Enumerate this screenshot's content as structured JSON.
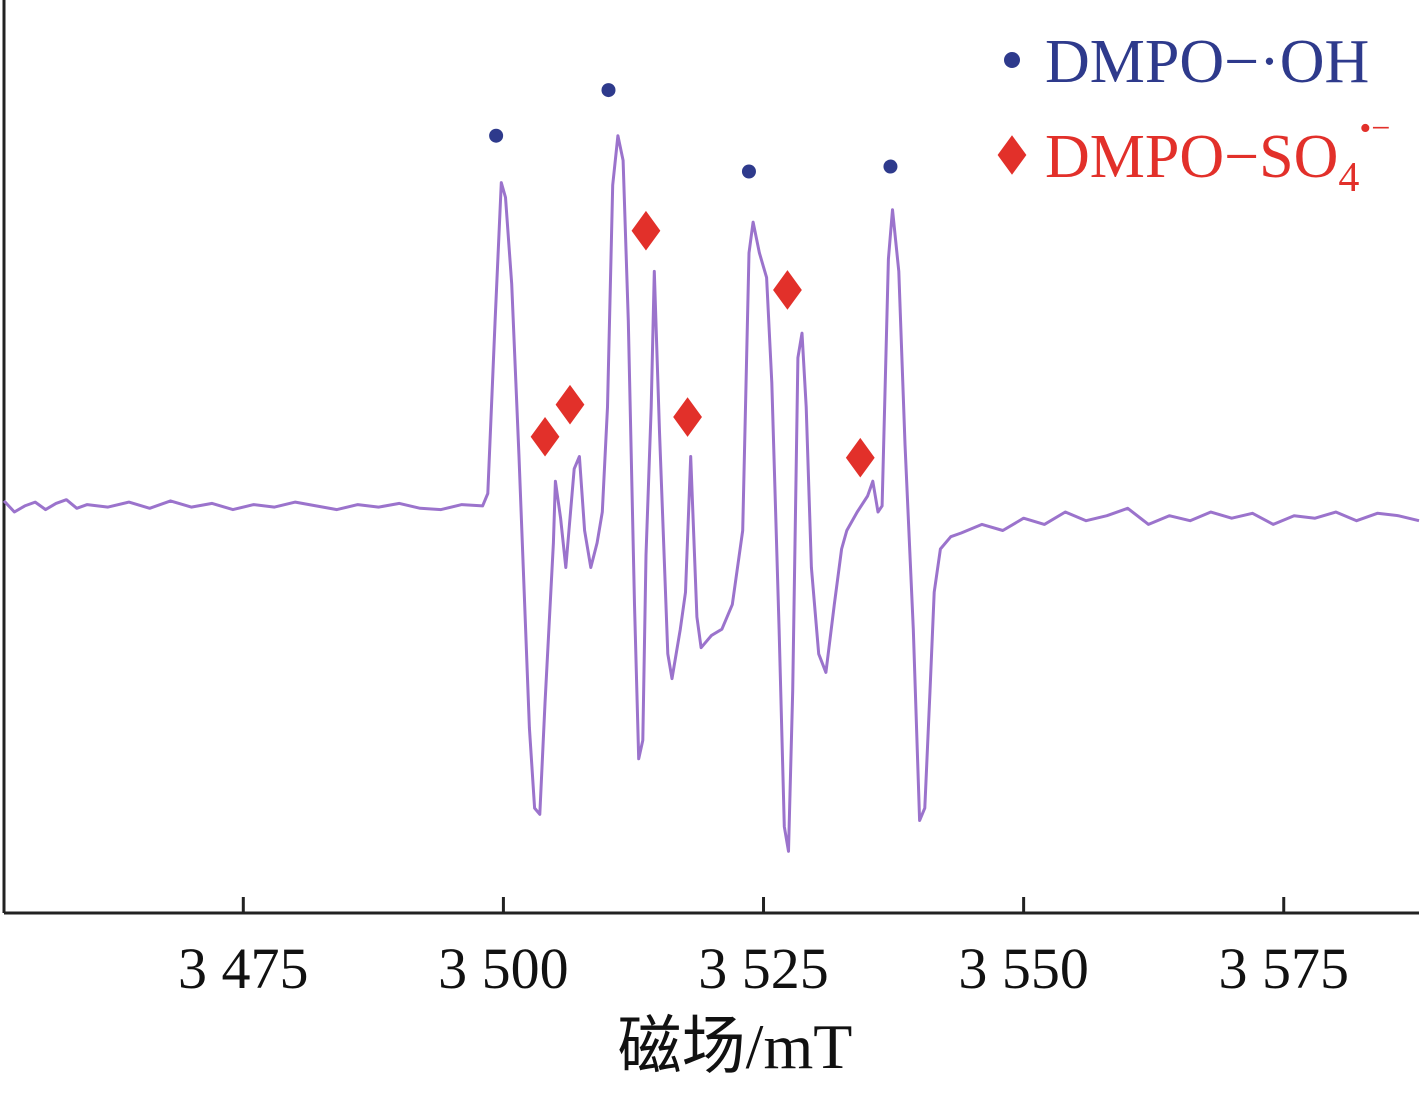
{
  "chart_data": {
    "type": "line",
    "title": "",
    "xlabel": "磁场/mT",
    "ylabel": "",
    "xlim": [
      3452,
      3588
    ],
    "ylim": [
      -330,
      410
    ],
    "x_ticks": [
      3475,
      3500,
      3525,
      3550,
      3575
    ],
    "x_tick_labels": [
      "3 475",
      "3 500",
      "3 525",
      "3 550",
      "3 575"
    ],
    "grid": false,
    "legend_position": "top-right",
    "legend": [
      {
        "label_main": "DMPO−·OH",
        "label_sub": "",
        "label_sup": "",
        "marker": "circle",
        "color": "#2e3a8c"
      },
      {
        "label_main": "DMPO−SO",
        "label_sub": "4",
        "label_sup": "•−",
        "marker": "diamond",
        "color": "#e2302a"
      }
    ],
    "series": [
      {
        "color": "#9b73cc",
        "points": [
          [
            3452,
            4
          ],
          [
            3453,
            -5
          ],
          [
            3454,
            0
          ],
          [
            3455,
            3
          ],
          [
            3456,
            -3
          ],
          [
            3457,
            2
          ],
          [
            3458,
            5
          ],
          [
            3459,
            -2
          ],
          [
            3460,
            1
          ],
          [
            3462,
            -1
          ],
          [
            3464,
            3
          ],
          [
            3466,
            -2
          ],
          [
            3468,
            4
          ],
          [
            3470,
            -1
          ],
          [
            3472,
            2
          ],
          [
            3474,
            -3
          ],
          [
            3476,
            1
          ],
          [
            3478,
            -1
          ],
          [
            3480,
            3
          ],
          [
            3482,
            0
          ],
          [
            3484,
            -3
          ],
          [
            3486,
            1
          ],
          [
            3488,
            -1
          ],
          [
            3490,
            2
          ],
          [
            3492,
            -2
          ],
          [
            3494,
            -3
          ],
          [
            3496,
            1
          ],
          [
            3498,
            0
          ],
          [
            3498.5,
            10
          ],
          [
            3499.2,
            150
          ],
          [
            3499.8,
            262
          ],
          [
            3500.2,
            250
          ],
          [
            3500.8,
            180
          ],
          [
            3501.5,
            40
          ],
          [
            3502.5,
            -180
          ],
          [
            3503,
            -245
          ],
          [
            3503.5,
            -250
          ],
          [
            3504,
            -160
          ],
          [
            3504.8,
            -30
          ],
          [
            3505,
            20
          ],
          [
            3505.5,
            -10
          ],
          [
            3506,
            -50
          ],
          [
            3506.8,
            30
          ],
          [
            3507.3,
            40
          ],
          [
            3507.8,
            -20
          ],
          [
            3508.4,
            -50
          ],
          [
            3509,
            -30
          ],
          [
            3509.5,
            -5
          ],
          [
            3510,
            80
          ],
          [
            3510.5,
            260
          ],
          [
            3511,
            300
          ],
          [
            3511.5,
            280
          ],
          [
            3512,
            150
          ],
          [
            3512.6,
            -80
          ],
          [
            3513,
            -205
          ],
          [
            3513.4,
            -190
          ],
          [
            3513.7,
            -40
          ],
          [
            3514.2,
            80
          ],
          [
            3514.5,
            190
          ],
          [
            3515,
            60
          ],
          [
            3515.8,
            -120
          ],
          [
            3516.2,
            -140
          ],
          [
            3517,
            -100
          ],
          [
            3517.5,
            -70
          ],
          [
            3518,
            40
          ],
          [
            3518.6,
            -90
          ],
          [
            3519,
            -115
          ],
          [
            3520,
            -105
          ],
          [
            3521,
            -100
          ],
          [
            3522,
            -80
          ],
          [
            3523,
            -20
          ],
          [
            3523.6,
            205
          ],
          [
            3524,
            230
          ],
          [
            3524.6,
            205
          ],
          [
            3525.3,
            185
          ],
          [
            3525.8,
            100
          ],
          [
            3526.5,
            -100
          ],
          [
            3527,
            -260
          ],
          [
            3527.4,
            -280
          ],
          [
            3527.8,
            -150
          ],
          [
            3528.3,
            120
          ],
          [
            3528.7,
            140
          ],
          [
            3529.1,
            80
          ],
          [
            3529.6,
            -50
          ],
          [
            3530.3,
            -120
          ],
          [
            3531,
            -135
          ],
          [
            3531.8,
            -80
          ],
          [
            3532.5,
            -35
          ],
          [
            3533,
            -20
          ],
          [
            3534,
            -5
          ],
          [
            3535,
            8
          ],
          [
            3535.5,
            20
          ],
          [
            3536,
            -5
          ],
          [
            3536.4,
            0
          ],
          [
            3537,
            200
          ],
          [
            3537.4,
            240
          ],
          [
            3538,
            190
          ],
          [
            3538.6,
            50
          ],
          [
            3539.4,
            -100
          ],
          [
            3540,
            -255
          ],
          [
            3540.5,
            -245
          ],
          [
            3541,
            -150
          ],
          [
            3541.4,
            -70
          ],
          [
            3542,
            -35
          ],
          [
            3543,
            -25
          ],
          [
            3544,
            -22
          ],
          [
            3546,
            -15
          ],
          [
            3548,
            -20
          ],
          [
            3550,
            -10
          ],
          [
            3552,
            -15
          ],
          [
            3554,
            -5
          ],
          [
            3556,
            -12
          ],
          [
            3558,
            -8
          ],
          [
            3560,
            -2
          ],
          [
            3562,
            -15
          ],
          [
            3564,
            -8
          ],
          [
            3566,
            -12
          ],
          [
            3568,
            -5
          ],
          [
            3570,
            -10
          ],
          [
            3572,
            -6
          ],
          [
            3574,
            -15
          ],
          [
            3576,
            -8
          ],
          [
            3578,
            -10
          ],
          [
            3580,
            -5
          ],
          [
            3582,
            -12
          ],
          [
            3584,
            -6
          ],
          [
            3586,
            -8
          ],
          [
            3588,
            -12
          ]
        ]
      }
    ],
    "annotations": [
      {
        "marker": "circle",
        "color": "#2e3a8c",
        "x": 3499.3,
        "y": 300
      },
      {
        "marker": "circle",
        "color": "#2e3a8c",
        "x": 3510.1,
        "y": 337
      },
      {
        "marker": "circle",
        "color": "#2e3a8c",
        "x": 3523.6,
        "y": 271
      },
      {
        "marker": "circle",
        "color": "#2e3a8c",
        "x": 3537.2,
        "y": 275
      },
      {
        "marker": "diamond",
        "color": "#e2302a",
        "x": 3504,
        "y": 56
      },
      {
        "marker": "diamond",
        "color": "#e2302a",
        "x": 3506.4,
        "y": 82
      },
      {
        "marker": "diamond",
        "color": "#e2302a",
        "x": 3513.7,
        "y": 223
      },
      {
        "marker": "diamond",
        "color": "#e2302a",
        "x": 3517.7,
        "y": 72
      },
      {
        "marker": "diamond",
        "color": "#e2302a",
        "x": 3527.3,
        "y": 175
      },
      {
        "marker": "diamond",
        "color": "#e2302a",
        "x": 3534.3,
        "y": 39
      }
    ]
  }
}
